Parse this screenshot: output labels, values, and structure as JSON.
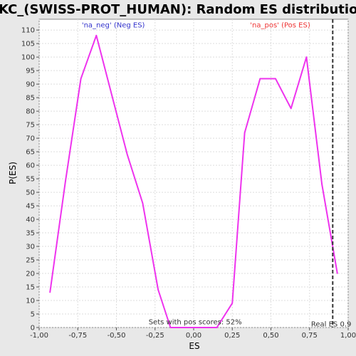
{
  "chart_data": {
    "type": "line",
    "title": "PKC_(SWISS-PROT_HUMAN): Random ES distribution",
    "xlabel": "ES",
    "ylabel": "P(ES)",
    "xlim": [
      -1.0,
      1.0
    ],
    "ylim": [
      0,
      114
    ],
    "x_ticks": [
      "-1,00",
      "-0,75",
      "-0,50",
      "-0,25",
      "0,00",
      "0,25",
      "0,50",
      "0,75",
      "1,00"
    ],
    "x_tick_values": [
      -1.0,
      -0.75,
      -0.5,
      -0.25,
      0.0,
      0.25,
      0.5,
      0.75,
      1.0
    ],
    "y_ticks": [
      0,
      5,
      10,
      15,
      20,
      25,
      30,
      35,
      40,
      45,
      50,
      55,
      60,
      65,
      70,
      75,
      80,
      85,
      90,
      95,
      100,
      105,
      110
    ],
    "grid": true,
    "series": [
      {
        "color": "#ee33ee",
        "x": [
          -0.93,
          -0.83,
          -0.73,
          -0.63,
          -0.53,
          -0.43,
          -0.33,
          -0.23,
          -0.15,
          0.0,
          0.15,
          0.25,
          0.33,
          0.43,
          0.53,
          0.63,
          0.73,
          0.83,
          0.93
        ],
        "y": [
          13,
          54,
          92,
          108,
          86,
          64,
          46,
          14,
          0,
          0,
          0,
          9,
          72,
          92,
          92,
          81,
          100,
          53,
          20
        ]
      }
    ],
    "annotations": [
      {
        "text": "'na_neg' (Neg ES)",
        "color": "#3333cc",
        "x": -0.52,
        "y": 111
      },
      {
        "text": "'na_pos' (Pos ES)",
        "color": "#ee3333",
        "x": 0.56,
        "y": 111
      },
      {
        "text": "Sets with pos scores: 52%",
        "color": "#333333",
        "x": 0.01,
        "y": 1.2
      },
      {
        "text": "Real ES 0.9",
        "color": "#333333",
        "x": 0.89,
        "y": 0.4
      }
    ],
    "real_es": 0.9
  }
}
